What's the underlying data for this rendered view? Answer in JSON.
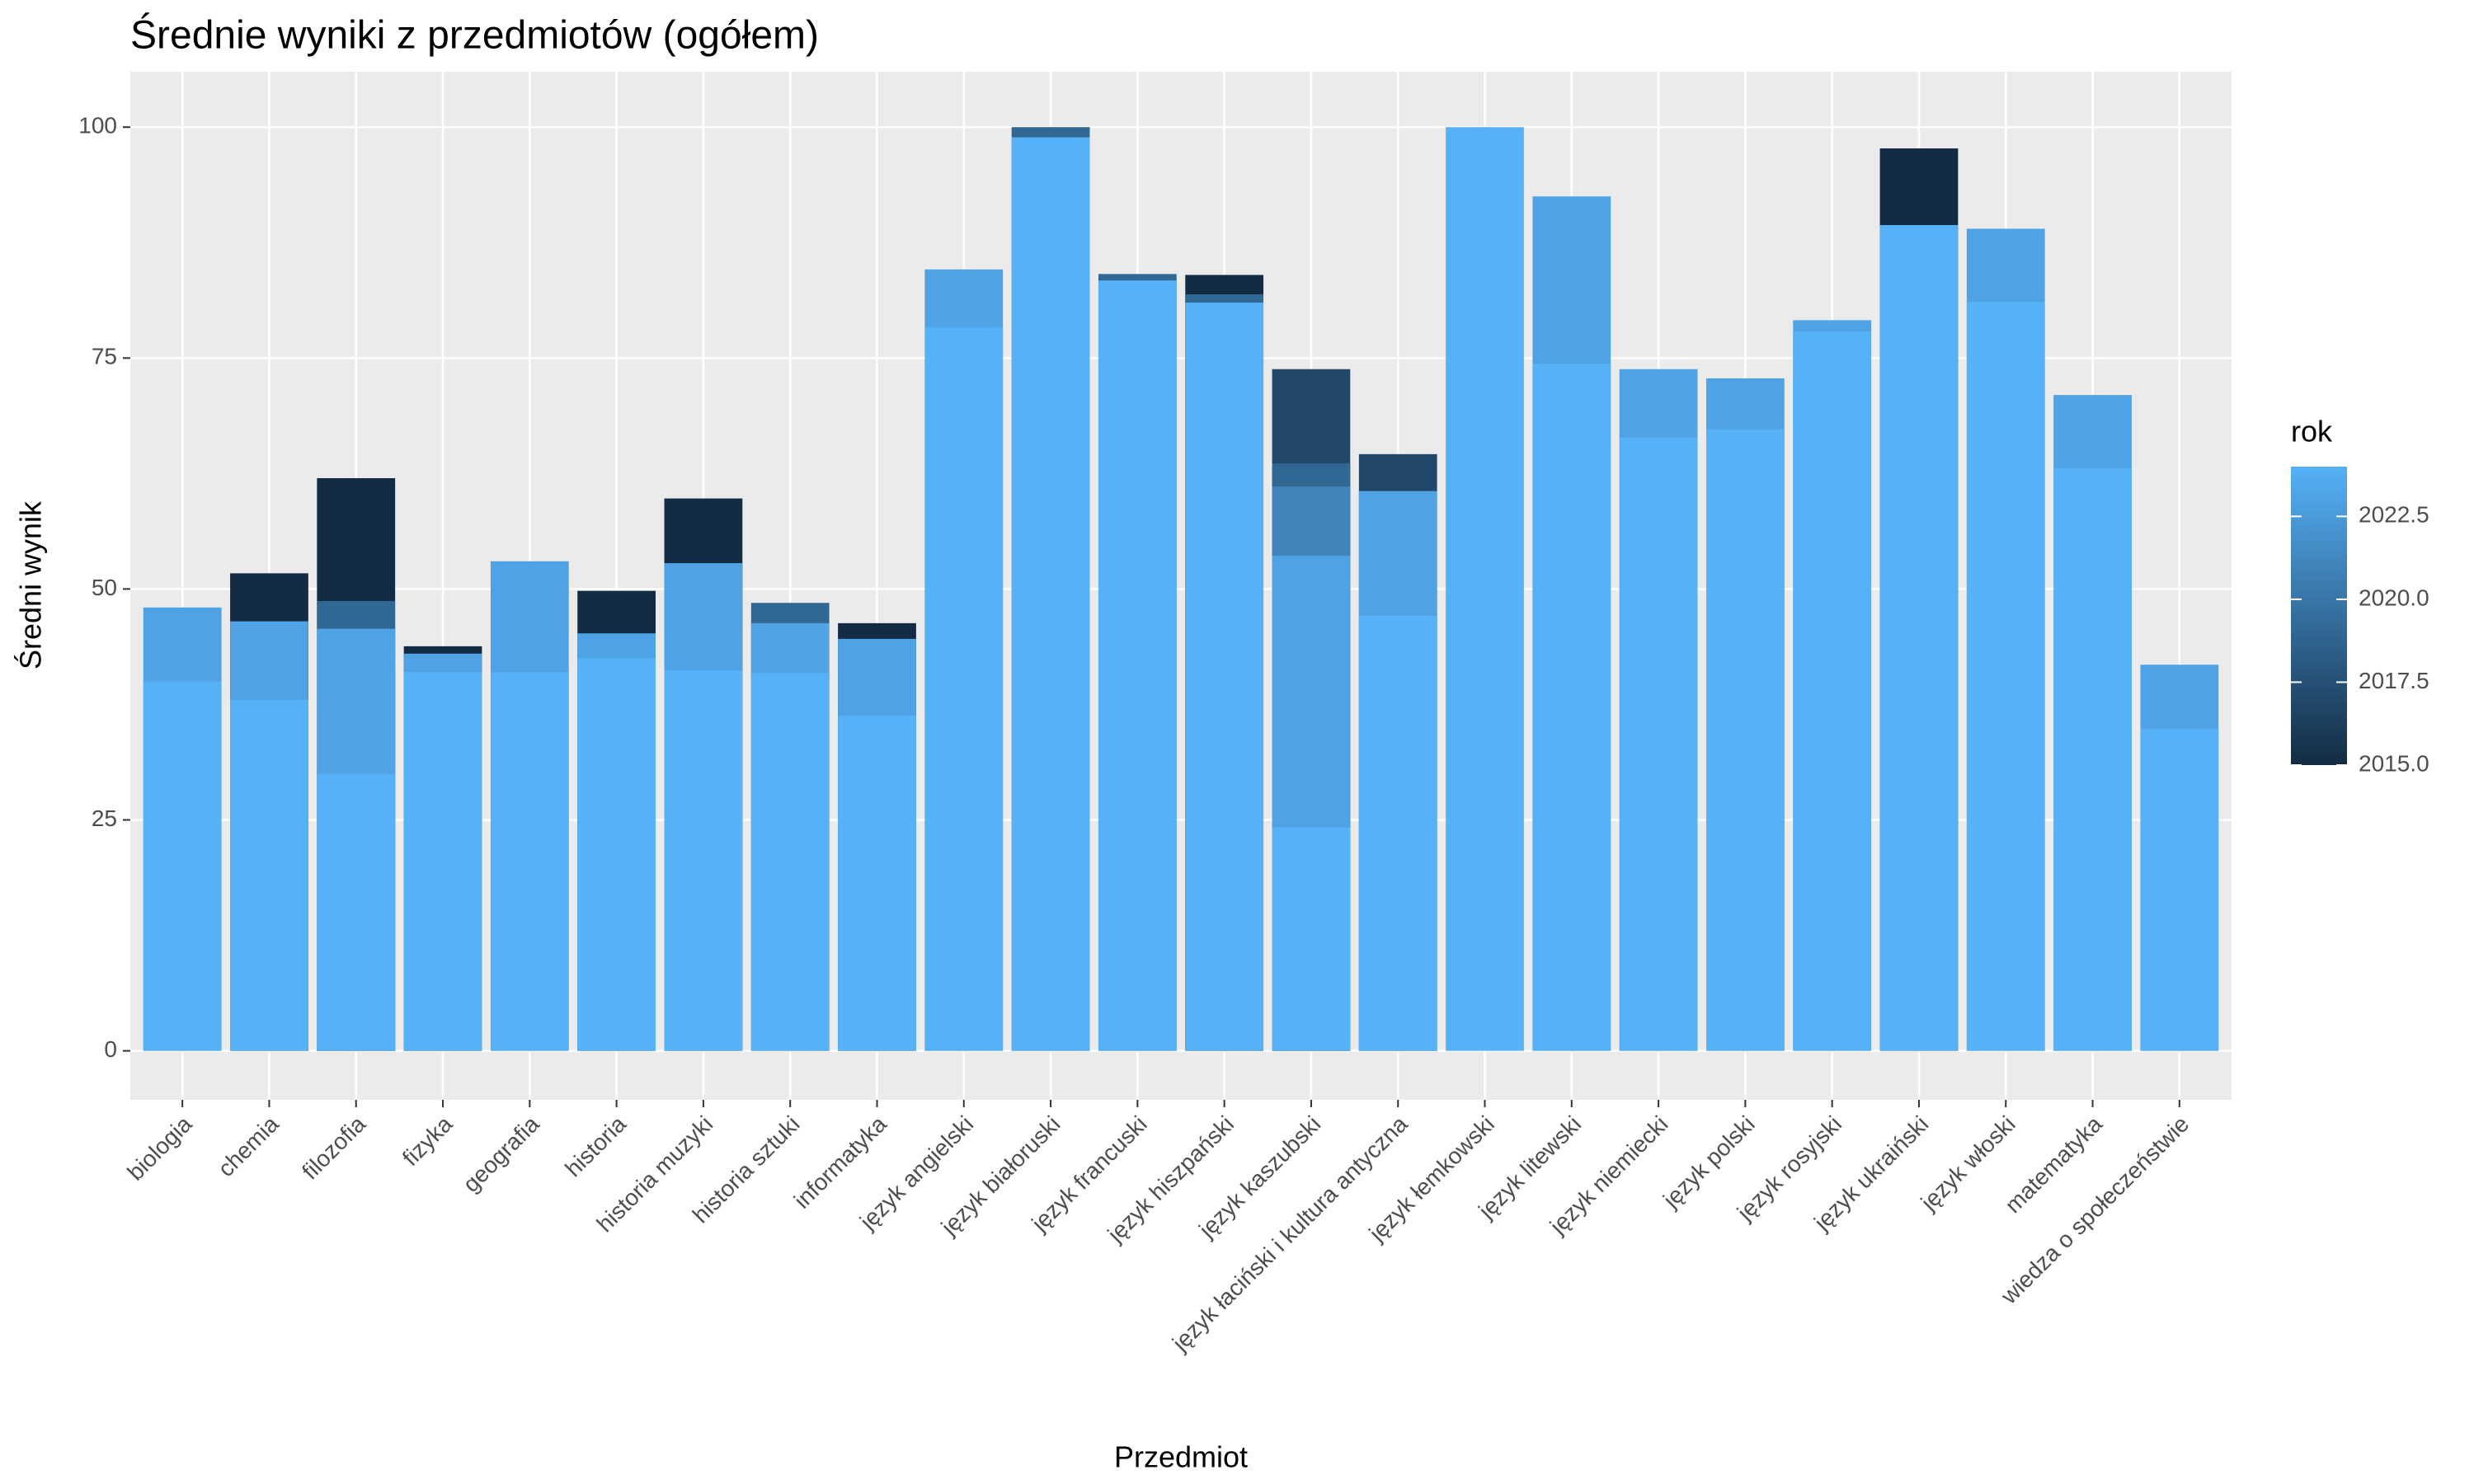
{
  "chart_data": {
    "type": "bar",
    "title": "Średnie wyniki z przedmiotów (ogółem)",
    "x_label": "Przedmiot",
    "y_label": "Średni wynik",
    "categories": [
      "biologia",
      "chemia",
      "filozofia",
      "fizyka",
      "geografia",
      "historia",
      "historia muzyki",
      "historia sztuki",
      "informatyka",
      "język angielski",
      "język białoruski",
      "język francuski",
      "język hiszpański",
      "język kaszubski",
      "język łaciński i kultura antyczna",
      "język łemkowski",
      "język litewski",
      "język niemiecki",
      "język polski",
      "język rosyjski",
      "język ukraiński",
      "język włoski",
      "matematyka",
      "wiedza o społeczeństwie"
    ],
    "series": [
      {
        "year": 2015,
        "values": [
          null,
          51.7,
          62,
          43.8,
          null,
          49.8,
          59.8,
          null,
          46.3,
          null,
          null,
          null,
          84,
          null,
          null,
          null,
          null,
          null,
          null,
          null,
          97.7,
          null,
          null,
          null
        ]
      },
      {
        "year": 2017,
        "values": [
          null,
          null,
          null,
          null,
          null,
          null,
          null,
          null,
          null,
          null,
          null,
          null,
          null,
          73.8,
          64.6,
          null,
          null,
          null,
          null,
          null,
          null,
          null,
          null,
          null
        ]
      },
      {
        "year": 2019,
        "values": [
          null,
          null,
          48.7,
          null,
          null,
          null,
          null,
          48.5,
          null,
          null,
          100,
          84.1,
          81.9,
          63.6,
          null,
          null,
          null,
          null,
          null,
          null,
          null,
          null,
          null,
          null
        ]
      },
      {
        "year": 2021,
        "values": [
          null,
          null,
          null,
          null,
          null,
          null,
          null,
          null,
          null,
          null,
          null,
          null,
          null,
          61.1,
          null,
          null,
          null,
          null,
          null,
          null,
          null,
          null,
          null,
          null
        ]
      },
      {
        "year": 2023,
        "values": [
          48,
          46.5,
          45.7,
          43,
          53,
          45.2,
          52.8,
          46.3,
          44.6,
          84.6,
          null,
          null,
          null,
          53.6,
          60.6,
          null,
          92.5,
          73.8,
          72.8,
          79.1,
          null,
          89,
          71,
          41.8
        ]
      },
      {
        "year": 2024,
        "values": [
          40,
          38,
          30,
          41,
          41,
          42.5,
          41.2,
          40.9,
          36.3,
          78.3,
          98.9,
          83.4,
          81,
          24.2,
          47.1,
          100,
          74.4,
          66.4,
          67.3,
          77.9,
          89.4,
          81.1,
          63.1,
          34.9
        ]
      }
    ],
    "ylim": [
      -5.3,
      106
    ],
    "yticks": [
      0,
      25,
      50,
      75,
      100
    ],
    "grid": true,
    "legend": {
      "title": "rok",
      "range": [
        2015,
        2024
      ],
      "low_color": "#132B43",
      "high_color": "#56B1F7",
      "ticks": [
        {
          "value": 2015,
          "label": "2015.0"
        },
        {
          "value": 2017.5,
          "label": "2017.5"
        },
        {
          "value": 2020,
          "label": "2020.0"
        },
        {
          "value": 2022.5,
          "label": "2022.5"
        }
      ]
    }
  }
}
